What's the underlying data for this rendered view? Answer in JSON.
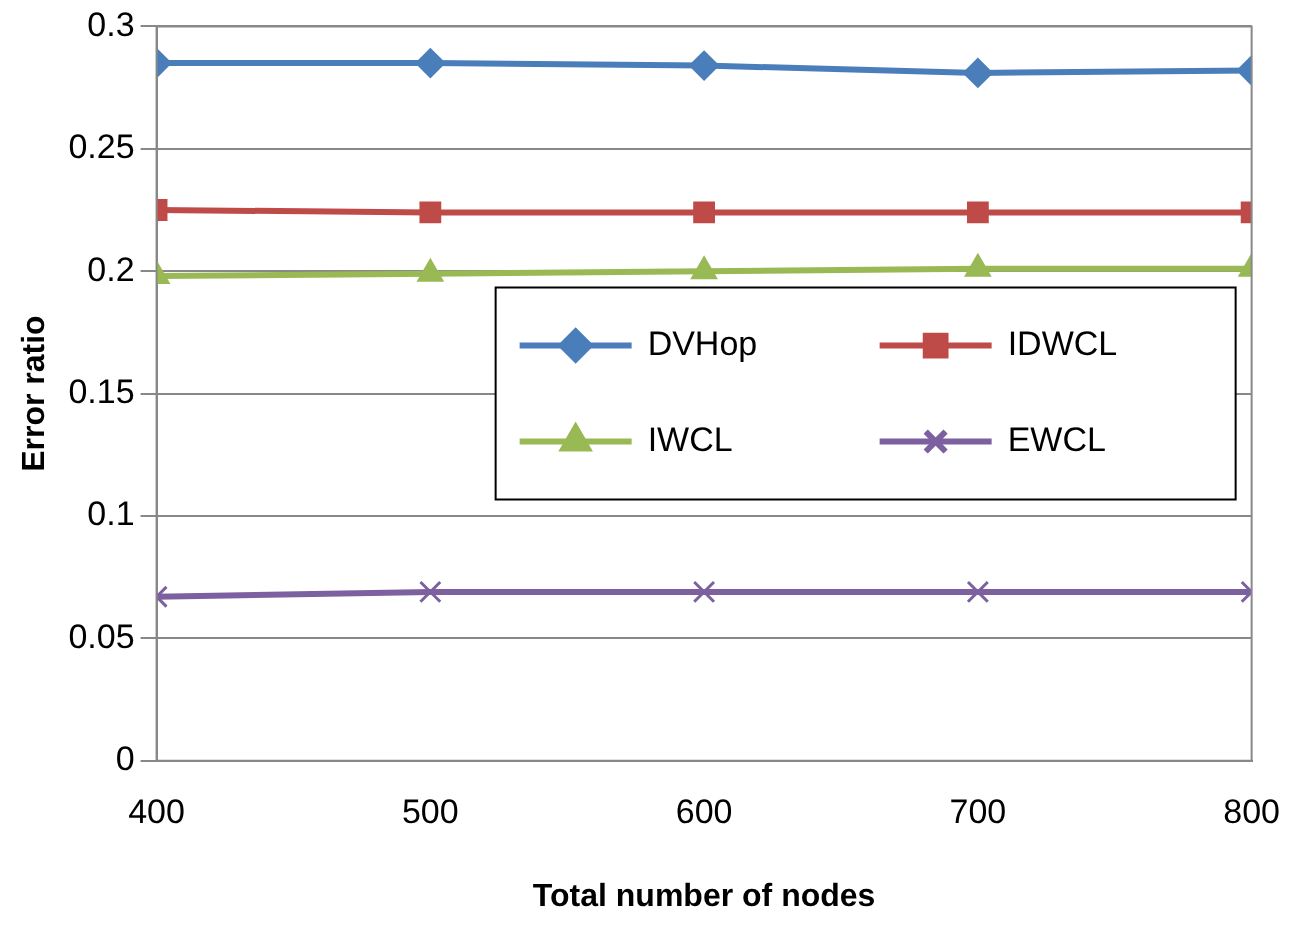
{
  "chart_data": {
    "type": "line",
    "xlabel": "Total number of nodes",
    "ylabel": "Error ratio",
    "x": [
      400,
      500,
      600,
      700,
      800
    ],
    "xlim": [
      400,
      800
    ],
    "xticks": [
      400,
      500,
      600,
      700,
      800
    ],
    "ylim": [
      0,
      0.3
    ],
    "yticks": [
      0,
      0.05,
      0.1,
      0.15,
      0.2,
      0.25,
      0.3
    ],
    "grid": "y",
    "legend": "center right",
    "series": [
      {
        "name": "DVHop",
        "color": "#4a7ebb",
        "marker": "diamond",
        "values": [
          0.285,
          0.285,
          0.284,
          0.281,
          0.282
        ]
      },
      {
        "name": "IDWCL",
        "color": "#be4b48",
        "marker": "square",
        "values": [
          0.225,
          0.224,
          0.224,
          0.224,
          0.224
        ]
      },
      {
        "name": "IWCL",
        "color": "#98b954",
        "marker": "triangle",
        "values": [
          0.198,
          0.199,
          0.2,
          0.201,
          0.201
        ]
      },
      {
        "name": "EWCL",
        "color": "#7d60a0",
        "marker": "cross",
        "values": [
          0.067,
          0.069,
          0.069,
          0.069,
          0.069
        ]
      }
    ]
  }
}
